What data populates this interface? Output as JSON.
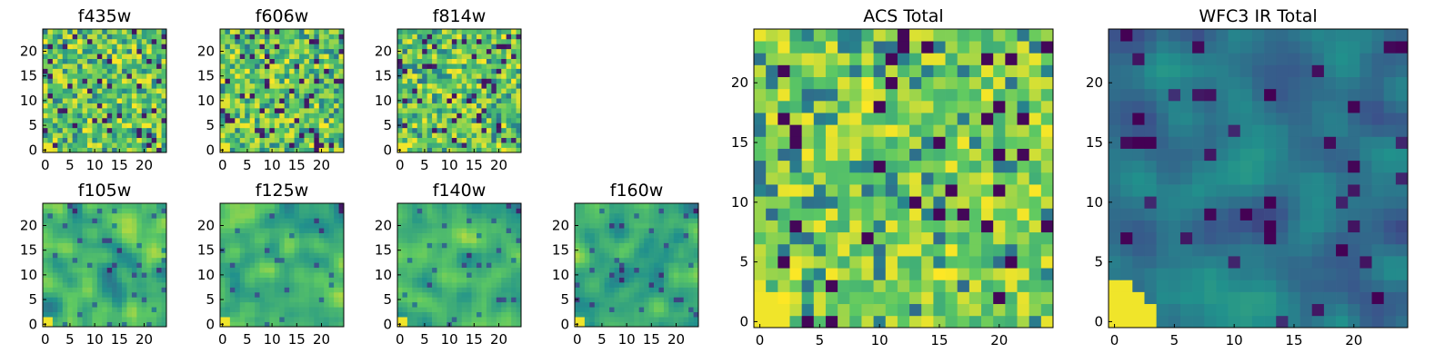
{
  "colormap": {
    "name": "viridis",
    "stops": [
      "#440154",
      "#3b528b",
      "#21918c",
      "#5ec962",
      "#fde725"
    ]
  },
  "chart_data": [
    {
      "type": "heatmap",
      "title": "f435w",
      "grid_size": 25,
      "xticks": [
        "0",
        "5",
        "10",
        "15",
        "20"
      ],
      "yticks": [
        "0",
        "5",
        "10",
        "15",
        "20"
      ],
      "xlim": [
        0,
        24
      ],
      "ylim": [
        0,
        24
      ],
      "grid": false,
      "pattern": "noise",
      "bright_corner": "bottom-left"
    },
    {
      "type": "heatmap",
      "title": "f606w",
      "grid_size": 25,
      "xticks": [
        "0",
        "5",
        "10",
        "15",
        "20"
      ],
      "yticks": [
        "0",
        "5",
        "10",
        "15",
        "20"
      ],
      "xlim": [
        0,
        24
      ],
      "ylim": [
        0,
        24
      ],
      "grid": false,
      "pattern": "noise",
      "bright_corner": "bottom-left"
    },
    {
      "type": "heatmap",
      "title": "f814w",
      "grid_size": 25,
      "xticks": [
        "0",
        "5",
        "10",
        "15",
        "20"
      ],
      "yticks": [
        "0",
        "5",
        "10",
        "15",
        "20"
      ],
      "xlim": [
        0,
        24
      ],
      "ylim": [
        0,
        24
      ],
      "grid": false,
      "pattern": "noise",
      "bright_corner": "bottom-left"
    },
    {
      "type": "heatmap",
      "title": "f105w",
      "grid_size": 25,
      "xticks": [
        "0",
        "5",
        "10",
        "15",
        "20"
      ],
      "yticks": [
        "0",
        "5",
        "10",
        "15",
        "20"
      ],
      "xlim": [
        0,
        24
      ],
      "ylim": [
        0,
        24
      ],
      "grid": false,
      "pattern": "smooth",
      "bright_corner": "bottom-left"
    },
    {
      "type": "heatmap",
      "title": "f125w",
      "grid_size": 25,
      "xticks": [
        "0",
        "5",
        "10",
        "15",
        "20"
      ],
      "yticks": [
        "0",
        "5",
        "10",
        "15",
        "20"
      ],
      "xlim": [
        0,
        24
      ],
      "ylim": [
        0,
        24
      ],
      "grid": false,
      "pattern": "smooth",
      "bright_corner": "bottom-left"
    },
    {
      "type": "heatmap",
      "title": "f140w",
      "grid_size": 25,
      "xticks": [
        "0",
        "5",
        "10",
        "15",
        "20"
      ],
      "yticks": [
        "0",
        "5",
        "10",
        "15",
        "20"
      ],
      "xlim": [
        0,
        24
      ],
      "ylim": [
        0,
        24
      ],
      "grid": false,
      "pattern": "smooth",
      "bright_corner": "bottom-left"
    },
    {
      "type": "heatmap",
      "title": "f160w",
      "grid_size": 25,
      "xticks": [
        "0",
        "5",
        "10",
        "15",
        "20"
      ],
      "yticks": [
        "0",
        "5",
        "10",
        "15",
        "20"
      ],
      "xlim": [
        0,
        24
      ],
      "ylim": [
        0,
        24
      ],
      "grid": false,
      "pattern": "smooth",
      "bright_corner": "bottom-left"
    },
    {
      "type": "heatmap",
      "title": "ACS Total",
      "grid_size": 25,
      "xticks": [
        "0",
        "5",
        "10",
        "15",
        "20"
      ],
      "yticks": [
        "0",
        "5",
        "10",
        "15",
        "20"
      ],
      "xlim": [
        0,
        24
      ],
      "ylim": [
        0,
        24
      ],
      "grid": false,
      "pattern": "acs",
      "bright_corner": "bottom-left"
    },
    {
      "type": "heatmap",
      "title": "WFC3 IR Total",
      "grid_size": 25,
      "xticks": [
        "0",
        "5",
        "10",
        "15",
        "20"
      ],
      "yticks": [
        "0",
        "5",
        "10",
        "15",
        "20"
      ],
      "xlim": [
        0,
        24
      ],
      "ylim": [
        0,
        24
      ],
      "grid": false,
      "pattern": "ir",
      "bright_corner": "bottom-left"
    }
  ]
}
